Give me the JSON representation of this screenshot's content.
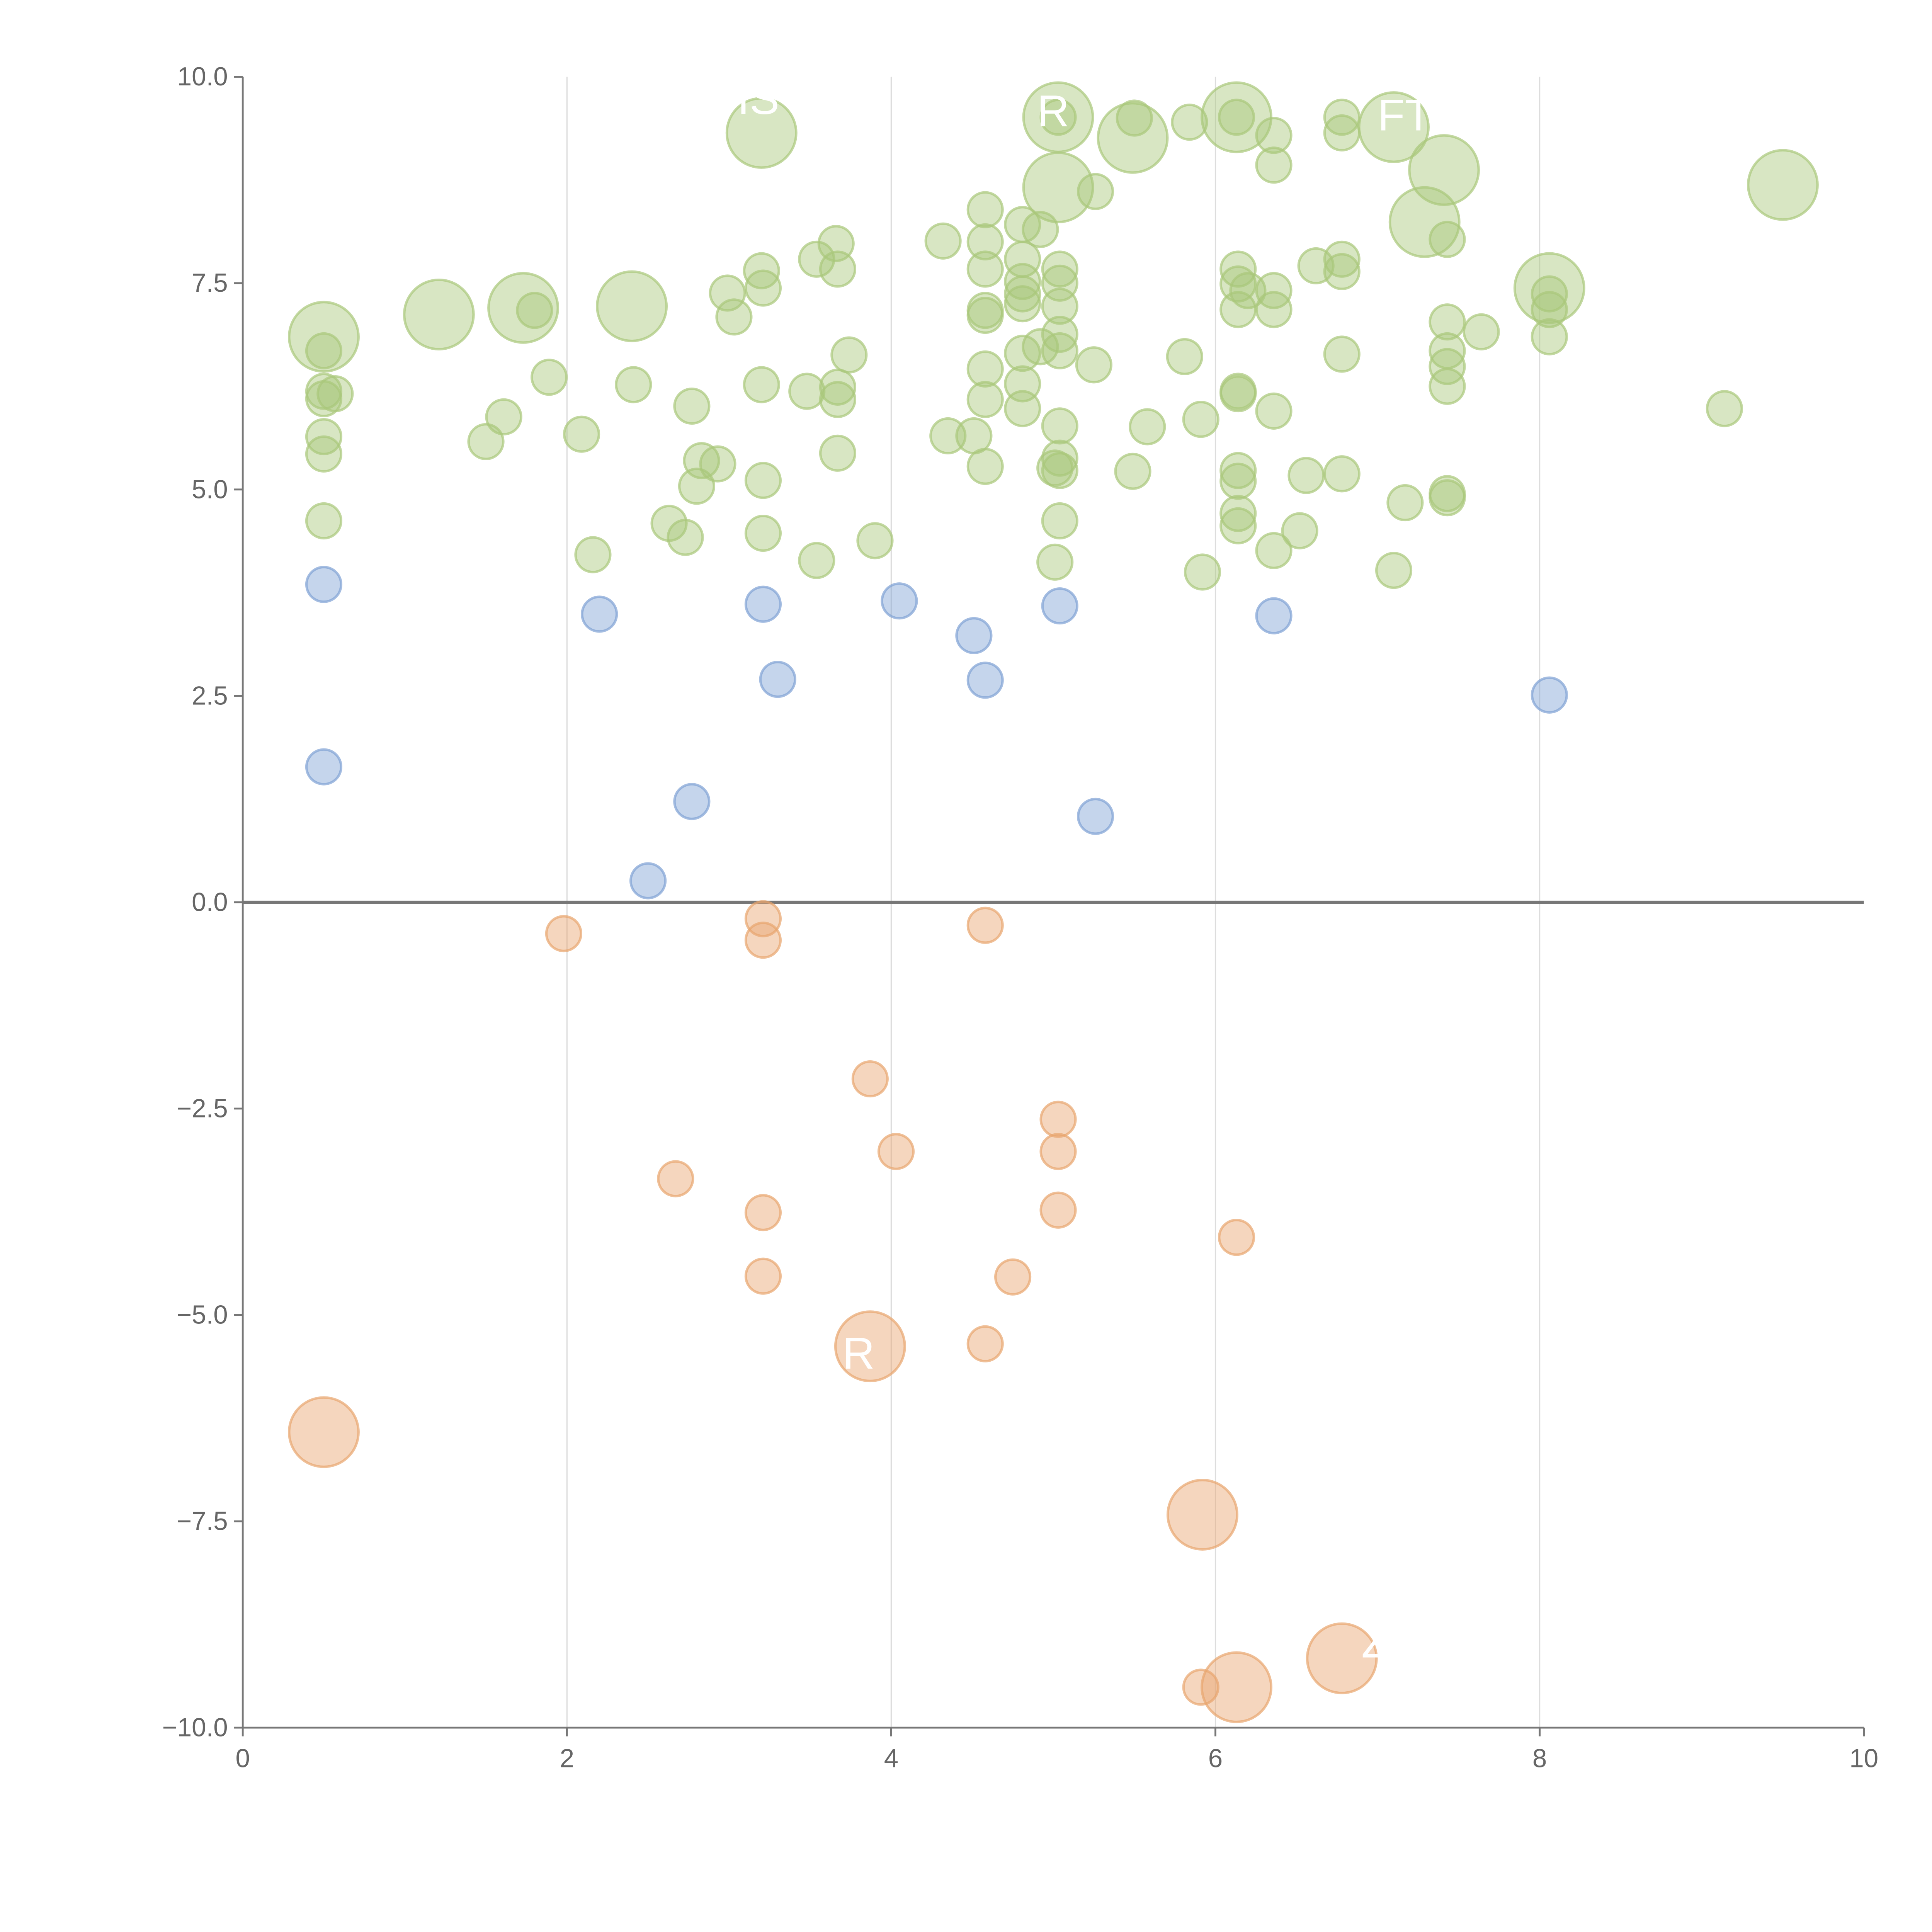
{
  "chart_data": {
    "type": "scatter",
    "title": "",
    "xlabel": "",
    "ylabel": "",
    "xlim": [
      0,
      10
    ],
    "ylim": [
      -10,
      10
    ],
    "x_ticks": [
      "0",
      "2",
      "4",
      "6",
      "8",
      "10"
    ],
    "y_ticks": [
      "10.0",
      "7.5",
      "5.0",
      "2.5",
      "0.0",
      "−2.5",
      "−5.0",
      "−7.5",
      "−10.0"
    ],
    "grid": "vertical at x ticks",
    "reference_line_y": 0,
    "point_format": "[x, y, relative_size]",
    "series": [
      {
        "name": "high",
        "color": "#a9c77a",
        "points": [
          [
            0.5,
            6.85,
            4
          ],
          [
            0.5,
            6.68,
            1
          ],
          [
            0.5,
            6.19,
            1
          ],
          [
            0.5,
            6.1,
            1
          ],
          [
            0.57,
            6.16,
            1
          ],
          [
            0.5,
            5.64,
            1
          ],
          [
            0.5,
            5.43,
            1
          ],
          [
            0.5,
            4.62,
            1
          ],
          [
            1.21,
            7.12,
            4
          ],
          [
            1.73,
            7.2,
            4
          ],
          [
            1.8,
            7.17,
            1
          ],
          [
            1.5,
            5.58,
            1
          ],
          [
            1.61,
            5.88,
            1
          ],
          [
            1.89,
            6.36,
            1
          ],
          [
            2.09,
            5.67,
            1
          ],
          [
            2.16,
            4.21,
            1
          ],
          [
            2.4,
            7.22,
            4
          ],
          [
            2.41,
            6.27,
            1
          ],
          [
            2.63,
            4.59,
            1
          ],
          [
            2.73,
            4.42,
            1
          ],
          [
            2.77,
            6.01,
            1
          ],
          [
            2.8,
            5.04,
            1
          ],
          [
            2.83,
            5.35,
            1
          ],
          [
            2.93,
            5.31,
            1
          ],
          [
            2.99,
            7.38,
            1
          ],
          [
            3.03,
            7.09,
            1
          ],
          [
            3.2,
            9.32,
            4
          ],
          [
            3.2,
            7.65,
            1
          ],
          [
            3.21,
            7.44,
            1
          ],
          [
            3.2,
            6.27,
            1
          ],
          [
            3.21,
            5.11,
            1
          ],
          [
            3.21,
            4.47,
            1
          ],
          [
            3.48,
            6.19,
            1
          ],
          [
            3.54,
            7.79,
            1
          ],
          [
            3.54,
            4.14,
            1
          ],
          [
            3.66,
            7.98,
            1
          ],
          [
            3.67,
            7.67,
            1
          ],
          [
            3.67,
            6.24,
            1
          ],
          [
            3.67,
            6.09,
            1
          ],
          [
            3.67,
            5.44,
            1
          ],
          [
            3.74,
            6.63,
            1
          ],
          [
            3.9,
            4.38,
            1
          ],
          [
            4.32,
            8.01,
            1
          ],
          [
            4.35,
            5.65,
            1
          ],
          [
            4.51,
            5.65,
            1
          ],
          [
            4.58,
            8.39,
            1
          ],
          [
            4.58,
            8.0,
            1
          ],
          [
            4.58,
            7.67,
            1
          ],
          [
            4.58,
            7.17,
            1
          ],
          [
            4.58,
            7.11,
            1
          ],
          [
            4.58,
            6.46,
            1
          ],
          [
            4.58,
            6.09,
            1
          ],
          [
            4.58,
            5.28,
            1
          ],
          [
            4.81,
            8.21,
            1
          ],
          [
            4.81,
            7.79,
            1
          ],
          [
            4.81,
            7.52,
            1
          ],
          [
            4.81,
            7.37,
            1
          ],
          [
            4.81,
            7.25,
            1
          ],
          [
            4.81,
            6.65,
            1
          ],
          [
            4.81,
            6.28,
            1
          ],
          [
            4.81,
            5.98,
            1
          ],
          [
            4.92,
            8.15,
            1
          ],
          [
            4.92,
            6.73,
            1
          ],
          [
            5.03,
            9.51,
            4
          ],
          [
            5.03,
            9.51,
            1
          ],
          [
            5.03,
            8.66,
            4
          ],
          [
            5.04,
            7.67,
            1
          ],
          [
            5.04,
            7.5,
            1
          ],
          [
            5.04,
            7.22,
            1
          ],
          [
            5.04,
            6.88,
            1
          ],
          [
            5.04,
            6.68,
            1
          ],
          [
            5.04,
            5.77,
            1
          ],
          [
            5.04,
            5.38,
            1
          ],
          [
            5.04,
            5.23,
            1
          ],
          [
            5.01,
            5.26,
            1
          ],
          [
            5.04,
            4.62,
            1
          ],
          [
            5.01,
            4.12,
            1
          ],
          [
            5.26,
            8.61,
            1
          ],
          [
            5.25,
            6.51,
            1
          ],
          [
            5.49,
            9.26,
            4
          ],
          [
            5.5,
            9.5,
            1
          ],
          [
            5.49,
            5.22,
            1
          ],
          [
            5.58,
            5.76,
            1
          ],
          [
            5.81,
            6.61,
            1
          ],
          [
            5.84,
            9.45,
            1
          ],
          [
            5.91,
            5.85,
            1
          ],
          [
            5.92,
            4.0,
            1
          ],
          [
            6.13,
            9.51,
            4
          ],
          [
            6.13,
            9.51,
            1
          ],
          [
            6.14,
            7.67,
            1
          ],
          [
            6.14,
            7.49,
            1
          ],
          [
            6.14,
            7.18,
            1
          ],
          [
            6.14,
            6.19,
            1
          ],
          [
            6.14,
            6.16,
            1
          ],
          [
            6.14,
            5.23,
            1
          ],
          [
            6.14,
            5.1,
            1
          ],
          [
            6.14,
            4.71,
            1
          ],
          [
            6.14,
            4.56,
            1
          ],
          [
            6.2,
            7.41,
            1
          ],
          [
            6.36,
            9.29,
            1
          ],
          [
            6.36,
            8.93,
            1
          ],
          [
            6.36,
            7.41,
            1
          ],
          [
            6.36,
            7.18,
            1
          ],
          [
            6.36,
            5.95,
            1
          ],
          [
            6.36,
            4.26,
            1
          ],
          [
            6.52,
            4.5,
            1
          ],
          [
            6.56,
            5.17,
            1
          ],
          [
            6.62,
            7.71,
            1
          ],
          [
            6.78,
            9.51,
            1
          ],
          [
            6.78,
            9.32,
            1
          ],
          [
            6.78,
            7.79,
            1
          ],
          [
            6.78,
            7.64,
            1
          ],
          [
            6.78,
            6.64,
            1
          ],
          [
            6.78,
            5.19,
            1
          ],
          [
            7.1,
            9.39,
            4
          ],
          [
            7.1,
            4.02,
            1
          ],
          [
            7.17,
            4.84,
            1
          ],
          [
            7.29,
            8.24,
            4
          ],
          [
            7.41,
            8.87,
            4
          ],
          [
            7.43,
            8.03,
            1
          ],
          [
            7.43,
            7.03,
            1
          ],
          [
            7.43,
            6.68,
            1
          ],
          [
            7.43,
            6.49,
            1
          ],
          [
            7.43,
            6.25,
            1
          ],
          [
            7.43,
            4.95,
            1
          ],
          [
            7.43,
            4.9,
            1
          ],
          [
            7.64,
            6.91,
            1
          ],
          [
            8.06,
            7.44,
            4
          ],
          [
            8.06,
            7.37,
            1
          ],
          [
            8.06,
            7.18,
            1
          ],
          [
            8.06,
            6.85,
            1
          ],
          [
            9.14,
            5.98,
            1
          ],
          [
            9.5,
            8.69,
            4
          ]
        ]
      },
      {
        "name": "low-positive",
        "color": "#7fa1d4",
        "points": [
          [
            0.5,
            3.85,
            1
          ],
          [
            0.5,
            1.64,
            1
          ],
          [
            2.2,
            3.49,
            1
          ],
          [
            2.5,
            0.26,
            1
          ],
          [
            2.77,
            1.22,
            1
          ],
          [
            3.21,
            3.61,
            1
          ],
          [
            3.3,
            2.7,
            1
          ],
          [
            4.05,
            3.65,
            1
          ],
          [
            4.51,
            3.23,
            1
          ],
          [
            4.58,
            2.69,
            1
          ],
          [
            5.04,
            3.59,
            1
          ],
          [
            5.26,
            1.04,
            1
          ],
          [
            6.36,
            3.47,
            1
          ],
          [
            8.06,
            2.51,
            1
          ]
        ]
      },
      {
        "name": "negative",
        "color": "#e8a56e",
        "points": [
          [
            1.98,
            -0.38,
            1
          ],
          [
            3.21,
            -0.2,
            1
          ],
          [
            3.21,
            -0.46,
            1
          ],
          [
            4.58,
            -0.28,
            1
          ],
          [
            3.87,
            -2.14,
            1
          ],
          [
            2.67,
            -3.35,
            1
          ],
          [
            3.21,
            -3.76,
            1
          ],
          [
            3.21,
            -4.53,
            1
          ],
          [
            4.03,
            -3.02,
            1
          ],
          [
            5.03,
            -2.63,
            1
          ],
          [
            5.03,
            -3.02,
            1
          ],
          [
            5.03,
            -3.73,
            1
          ],
          [
            6.13,
            -4.06,
            1
          ],
          [
            4.75,
            -4.54,
            1
          ],
          [
            4.58,
            -5.35,
            1
          ],
          [
            5.91,
            -9.51,
            1
          ],
          [
            3.87,
            -5.38,
            4
          ],
          [
            0.5,
            -6.42,
            4
          ],
          [
            5.92,
            -7.42,
            4
          ],
          [
            6.78,
            -9.16,
            4
          ],
          [
            6.13,
            -9.51,
            4
          ]
        ]
      }
    ],
    "annotations": [
      {
        "text": "IS",
        "x": 3.05,
        "y": 9.55
      },
      {
        "text": "R",
        "x": 4.9,
        "y": 9.4
      },
      {
        "text": "FTM",
        "x": 7.0,
        "y": 9.35
      },
      {
        "text": "R",
        "x": 3.7,
        "y": -5.65
      },
      {
        "text": "Z",
        "x": 6.9,
        "y": -9.15
      }
    ]
  }
}
